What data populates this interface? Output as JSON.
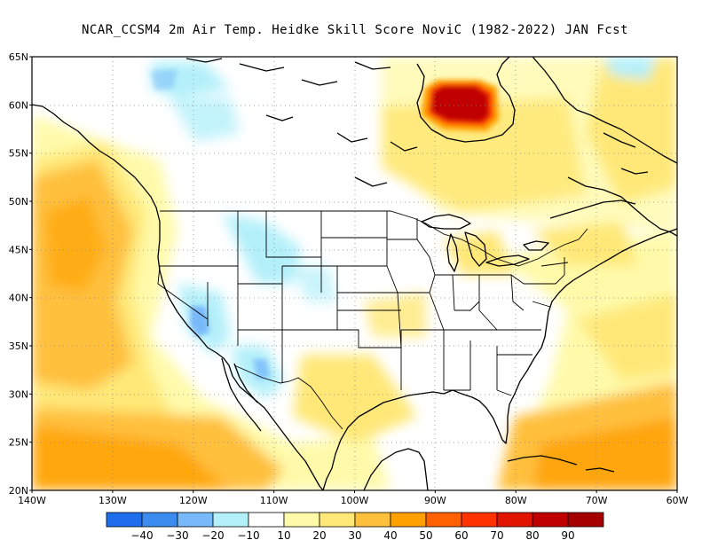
{
  "title": "NCAR_CCSM4  2m Air Temp. Heidke Skill Score NoviC (1982-2022) JAN Fcst",
  "axes": {
    "lat_labels": [
      "65N",
      "60N",
      "55N",
      "50N",
      "45N",
      "40N",
      "35N",
      "30N",
      "25N",
      "20N"
    ],
    "lon_labels": [
      "140W",
      "130W",
      "120W",
      "110W",
      "100W",
      "90W",
      "80W",
      "70W",
      "60W"
    ]
  },
  "colorbar": {
    "labels": [
      "−40",
      "−30",
      "−20",
      "−10",
      "10",
      "20",
      "30",
      "40",
      "50",
      "60",
      "70",
      "80",
      "90"
    ],
    "colors": [
      "#1e6eeb",
      "#3c8cf0",
      "#78b9fa",
      "#b4f0fa",
      "#ffffff",
      "#fffaaa",
      "#ffe878",
      "#ffc03c",
      "#ffa000",
      "#ff6000",
      "#ff3200",
      "#e11400",
      "#c00000",
      "#a50000"
    ]
  },
  "legend_units": "Heidke Skill Score"
}
